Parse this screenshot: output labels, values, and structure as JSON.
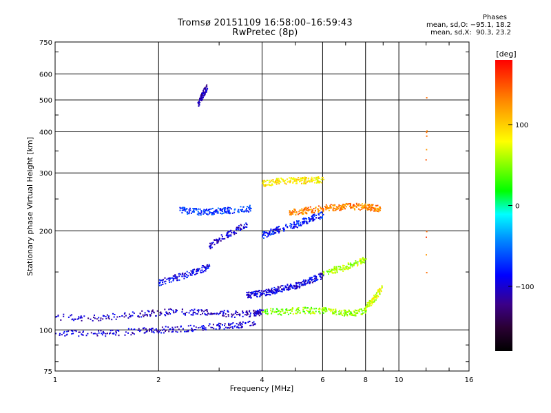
{
  "header": {
    "title_line1": "Tromsø 20151109 16:58:00–16:59:43",
    "title_line2": "RwPretec (8p)",
    "phase_heading": "Phases",
    "phase_o": "mean, sd,O: −95.1, 18.2",
    "phase_x": "mean, sd,X:  90.3, 23.2"
  },
  "colorbar": {
    "unit_label": "[deg]",
    "ticks": [
      "100",
      "0",
      "−100"
    ],
    "tick_values": [
      100,
      0,
      -100
    ],
    "range": [
      -180,
      180
    ]
  },
  "chart_data": {
    "type": "scatter",
    "title": "Tromsø 20151109 16:58:00–16:59:43",
    "subtitle": "RwPretec (8p)",
    "xlabel": "Frequency [MHz]",
    "ylabel": "Stationary phase Virtual Height [km]",
    "xscale": "log",
    "yscale": "log",
    "xlim": [
      1,
      16
    ],
    "ylim": [
      75,
      750
    ],
    "xticks": [
      1,
      2,
      4,
      6,
      8,
      10,
      16
    ],
    "xtick_labels": [
      "1",
      "2",
      "4",
      "6",
      "8",
      "10",
      "16"
    ],
    "yticks": [
      75,
      100,
      200,
      300,
      400,
      500,
      600,
      750
    ],
    "ytick_labels": [
      "75",
      "100",
      "200",
      "300",
      "400",
      "500",
      "600",
      "750"
    ],
    "grid": true,
    "color_variable": "phase [deg]",
    "traces": [
      {
        "freq": [
          1.0,
          1.3,
          1.6,
          1.9,
          2.2,
          2.6,
          3.0,
          3.4,
          3.8
        ],
        "height": [
          98,
          98,
          99,
          100,
          101,
          102,
          103,
          104,
          105
        ],
        "phase": -100
      },
      {
        "freq": [
          1.0,
          1.3,
          1.6,
          1.9,
          2.2,
          2.6,
          3.0,
          3.4,
          3.8,
          4.0
        ],
        "height": [
          110,
          109,
          111,
          113,
          114,
          114,
          113,
          112,
          113,
          114
        ],
        "phase": -105
      },
      {
        "freq": [
          4.0,
          4.5,
          5.0,
          5.5,
          6.0,
          6.5,
          7.0,
          7.5,
          8.0
        ],
        "height": [
          114,
          114,
          115,
          115,
          115,
          114,
          113,
          113,
          115
        ],
        "phase": 50
      },
      {
        "freq": [
          8.0,
          8.3,
          8.6,
          8.9
        ],
        "height": [
          118,
          122,
          128,
          135
        ],
        "phase": 70
      },
      {
        "freq": [
          3.6,
          3.8,
          4.0,
          4.2,
          4.4,
          4.7,
          5.0,
          5.3,
          5.6,
          6.0
        ],
        "height": [
          128,
          129,
          130,
          131,
          133,
          135,
          137,
          140,
          143,
          147
        ],
        "phase": -95
      },
      {
        "freq": [
          6.0,
          6.5,
          7.0,
          7.5,
          8.0
        ],
        "height": [
          150,
          153,
          156,
          160,
          165
        ],
        "phase": 60
      },
      {
        "freq": [
          2.0,
          2.2,
          2.4,
          2.6,
          2.8
        ],
        "height": [
          140,
          144,
          148,
          152,
          157
        ],
        "phase": -90
      },
      {
        "freq": [
          2.8,
          3.0,
          3.3,
          3.6
        ],
        "height": [
          180,
          190,
          200,
          210
        ],
        "phase": -100
      },
      {
        "freq": [
          4.0,
          4.3,
          4.6,
          5.0,
          5.3,
          5.6,
          6.0
        ],
        "height": [
          195,
          200,
          205,
          210,
          215,
          220,
          225
        ],
        "phase": -80
      },
      {
        "freq": [
          2.3,
          2.5,
          2.7,
          2.9,
          3.1,
          3.4,
          3.7
        ],
        "height": [
          232,
          230,
          229,
          230,
          231,
          233,
          235
        ],
        "phase": -70
      },
      {
        "freq": [
          4.8,
          5.1,
          5.4,
          5.8,
          6.2,
          6.6,
          7.0,
          7.5,
          8.0,
          8.4,
          8.8
        ],
        "height": [
          228,
          230,
          232,
          234,
          236,
          237,
          238,
          238,
          237,
          236,
          235
        ],
        "phase": 130
      },
      {
        "freq": [
          4.0,
          4.3,
          4.6,
          5.0,
          5.3,
          5.7,
          6.0
        ],
        "height": [
          280,
          283,
          285,
          285,
          286,
          287,
          288
        ],
        "phase": 90
      },
      {
        "freq": [
          2.6,
          2.65,
          2.7,
          2.75
        ],
        "height": [
          490,
          510,
          530,
          550
        ],
        "phase": -110
      },
      {
        "freq": [
          12.0,
          12.0,
          12.0,
          12.0
        ],
        "height": [
          150,
          200,
          390,
          510
        ],
        "phase": 140
      }
    ]
  }
}
